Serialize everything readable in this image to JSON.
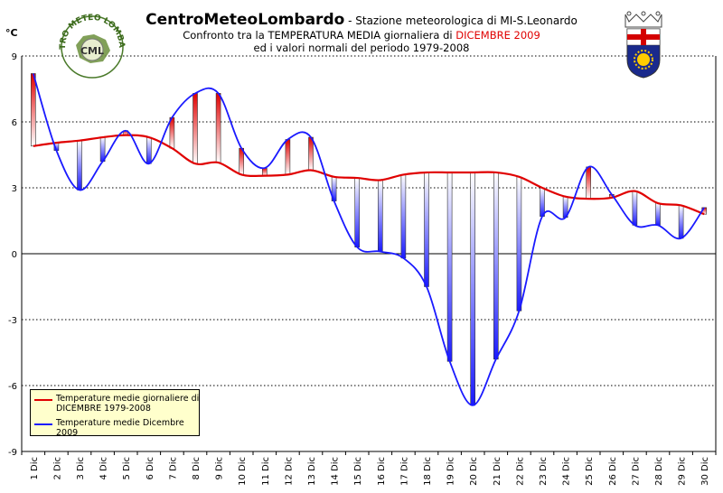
{
  "header": {
    "brand": "CentroMeteoLombardo",
    "station": " - Stazione meteorologica di MI-S.Leonardo",
    "line2_pre": "Confronto tra la TEMPERATURA MEDIA giornaliera di ",
    "line2_hl": "DICEMBRE 2009",
    "line3": "ed i valori normali del periodo 1979-2008"
  },
  "logo": {
    "text_top": "CENTRO METEO LOMBARDO",
    "text_center": "CML"
  },
  "colors": {
    "normal": "#e00000",
    "actual": "#1a1aff",
    "legend_bg": "#ffffcc",
    "grid": "#000000"
  },
  "chart_data": {
    "type": "line",
    "unit_label": "°C",
    "categories": [
      "1 Dic",
      "2 Dic",
      "3 Dic",
      "4 Dic",
      "5 Dic",
      "6 Dic",
      "7 Dic",
      "8 Dic",
      "9 Dic",
      "10 Dic",
      "11 Dic",
      "12 Dic",
      "13 Dic",
      "14 Dic",
      "15 Dic",
      "16 Dic",
      "17 Dic",
      "18 Dic",
      "19 Dic",
      "20 Dic",
      "21 Dic",
      "22 Dic",
      "23 Dic",
      "24 Dic",
      "25 Dic",
      "26 Dic",
      "27 Dic",
      "28 Dic",
      "29 Dic",
      "30 Dic"
    ],
    "ylim": [
      -9,
      9
    ],
    "yticks": [
      -9,
      -6,
      -3,
      0,
      3,
      6,
      9
    ],
    "series": [
      {
        "name": "Temperature medie giornaliere di DICEMBRE 1979-2008",
        "values": [
          4.9,
          5.05,
          5.15,
          5.3,
          5.4,
          5.3,
          4.8,
          4.1,
          4.15,
          3.6,
          3.55,
          3.6,
          3.8,
          3.5,
          3.45,
          3.35,
          3.6,
          3.7,
          3.7,
          3.7,
          3.7,
          3.5,
          3.0,
          2.6,
          2.5,
          2.55,
          2.85,
          2.3,
          2.2,
          1.8
        ]
      },
      {
        "name": "Temperature medie Dicembre 2009",
        "values": [
          8.2,
          4.7,
          2.9,
          4.2,
          5.6,
          4.1,
          6.2,
          7.3,
          7.3,
          4.8,
          3.9,
          5.2,
          5.3,
          2.4,
          0.3,
          0.1,
          -0.2,
          -1.5,
          -4.9,
          -6.9,
          -4.8,
          -2.6,
          1.7,
          1.65,
          3.95,
          2.7,
          1.3,
          1.3,
          0.7,
          2.1
        ]
      }
    ]
  }
}
